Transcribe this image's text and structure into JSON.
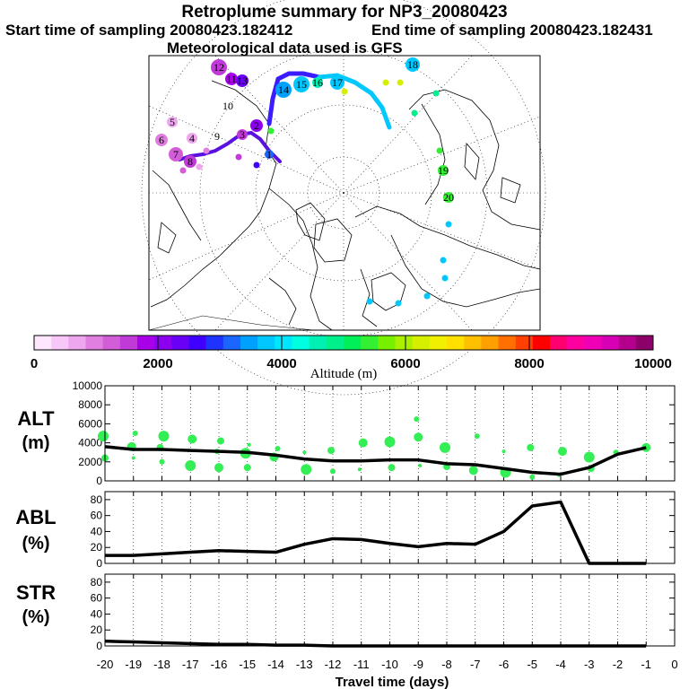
{
  "header": {
    "title": "Retroplume summary for NP3_20080423",
    "start_label": "Start time of sampling 20080423.182412",
    "end_label": "End time of sampling 20080423.182431",
    "met_label": "Meteorological data used is GFS"
  },
  "colorbar": {
    "ticks": [
      "0",
      "2000",
      "4000",
      "6000",
      "8000",
      "10000"
    ],
    "label": "Altitude (m)",
    "colors": [
      "#ffe6ff",
      "#f7c8f7",
      "#eea6ee",
      "#e07fe0",
      "#d35cd8",
      "#c03ad8",
      "#a800e8",
      "#8c00f0",
      "#6a00f5",
      "#3f00ff",
      "#1f33ff",
      "#1a66ff",
      "#00a0ff",
      "#00c8ff",
      "#00e6ff",
      "#00ffe0",
      "#00f0b4",
      "#00f08c",
      "#00f05a",
      "#33f033",
      "#77f000",
      "#aaf000",
      "#d4f000",
      "#f0f000",
      "#ffe000",
      "#ffc000",
      "#ffa000",
      "#ff7000",
      "#ff4000",
      "#ff0000",
      "#ff0070",
      "#ff00a0",
      "#f000b4",
      "#d800b4",
      "#b4008c",
      "#8c006a"
    ]
  },
  "map": {
    "labels": [
      "12",
      "11",
      "10",
      "9",
      "8",
      "7",
      "6",
      "5",
      "4",
      "3",
      "2",
      "1",
      "13",
      "14",
      "15",
      "16",
      "17",
      "18",
      "19",
      "20"
    ]
  },
  "axes": {
    "x_label": "Travel time (days)",
    "x_ticks": [
      "-20",
      "-19",
      "-18",
      "-17",
      "-16",
      "-15",
      "-14",
      "-13",
      "-12",
      "-11",
      "-10",
      "-9",
      "-8",
      "-7",
      "-6",
      "-5",
      "-4",
      "-3",
      "-2",
      "-1",
      "0"
    ]
  },
  "chart_data": [
    {
      "type": "line",
      "panel": "ALT",
      "ylabel": "ALT",
      "yunit": "(m)",
      "ylim": [
        0,
        10000
      ],
      "yticks": [
        "0",
        "2000",
        "4000",
        "6000",
        "8000",
        "10000"
      ],
      "x": [
        -20,
        -19,
        -18,
        -17,
        -16,
        -15,
        -14,
        -13,
        -12,
        -11,
        -10,
        -9,
        -8,
        -7,
        -6,
        -5,
        -4,
        -3,
        -2,
        -1
      ],
      "values": [
        3600,
        3300,
        3300,
        3200,
        3100,
        3000,
        2700,
        2300,
        2100,
        2100,
        2200,
        2200,
        1800,
        1700,
        1300,
        900,
        700,
        1400,
        2800,
        3500
      ],
      "points": [
        [
          -20,
          4700
        ],
        [
          -20,
          2400
        ],
        [
          -19,
          5000
        ],
        [
          -19,
          3600
        ],
        [
          -19,
          2400
        ],
        [
          -18,
          4700
        ],
        [
          -18,
          3500
        ],
        [
          -18,
          2000
        ],
        [
          -17,
          4400
        ],
        [
          -17,
          3200
        ],
        [
          -17,
          1600
        ],
        [
          -16,
          4200
        ],
        [
          -16,
          3100
        ],
        [
          -16,
          1400
        ],
        [
          -15,
          3800
        ],
        [
          -15,
          2900
        ],
        [
          -15,
          1400
        ],
        [
          -14,
          3400
        ],
        [
          -14,
          2500
        ],
        [
          -13,
          3000
        ],
        [
          -13,
          1200
        ],
        [
          -12,
          3200
        ],
        [
          -12,
          1000
        ],
        [
          -11,
          4000
        ],
        [
          -11,
          1200
        ],
        [
          -10,
          4100
        ],
        [
          -10,
          1400
        ],
        [
          -9,
          6500
        ],
        [
          -9,
          4600
        ],
        [
          -9,
          1600
        ],
        [
          -8,
          3500
        ],
        [
          -8,
          1500
        ],
        [
          -7,
          4700
        ],
        [
          -7,
          1100
        ],
        [
          -6,
          3100
        ],
        [
          -6,
          900
        ],
        [
          -5,
          3500
        ],
        [
          -5,
          400
        ],
        [
          -4,
          3100
        ],
        [
          -4,
          600
        ],
        [
          -3,
          2500
        ],
        [
          -3,
          1300
        ],
        [
          -2,
          3000
        ],
        [
          -1,
          3500
        ]
      ]
    },
    {
      "type": "line",
      "panel": "ABL",
      "ylabel": "ABL",
      "yunit": "(%)",
      "ylim": [
        0,
        90
      ],
      "yticks": [
        "0",
        "20",
        "40",
        "60",
        "80"
      ],
      "x": [
        -20,
        -19,
        -18,
        -17,
        -16,
        -15,
        -14,
        -13,
        -12,
        -11,
        -10,
        -9,
        -8,
        -7,
        -6,
        -5,
        -4,
        -3,
        -2,
        -1
      ],
      "values": [
        10,
        10,
        12,
        14,
        16,
        15,
        14,
        24,
        31,
        30,
        25,
        21,
        25,
        24,
        40,
        72,
        77,
        0,
        0,
        0
      ]
    },
    {
      "type": "line",
      "panel": "STR",
      "ylabel": "STR",
      "yunit": "(%)",
      "ylim": [
        0,
        90
      ],
      "yticks": [
        "0",
        "20",
        "40",
        "60",
        "80"
      ],
      "x": [
        -20,
        -19,
        -18,
        -17,
        -16,
        -15,
        -14,
        -13,
        -12,
        -11,
        -10,
        -9,
        -8,
        -7,
        -6,
        -5,
        -4,
        -3,
        -2,
        -1
      ],
      "values": [
        6,
        5,
        4,
        3,
        2,
        2,
        1,
        1,
        0,
        0,
        0,
        0,
        0,
        0,
        0,
        0,
        0,
        0,
        0,
        0
      ]
    }
  ]
}
